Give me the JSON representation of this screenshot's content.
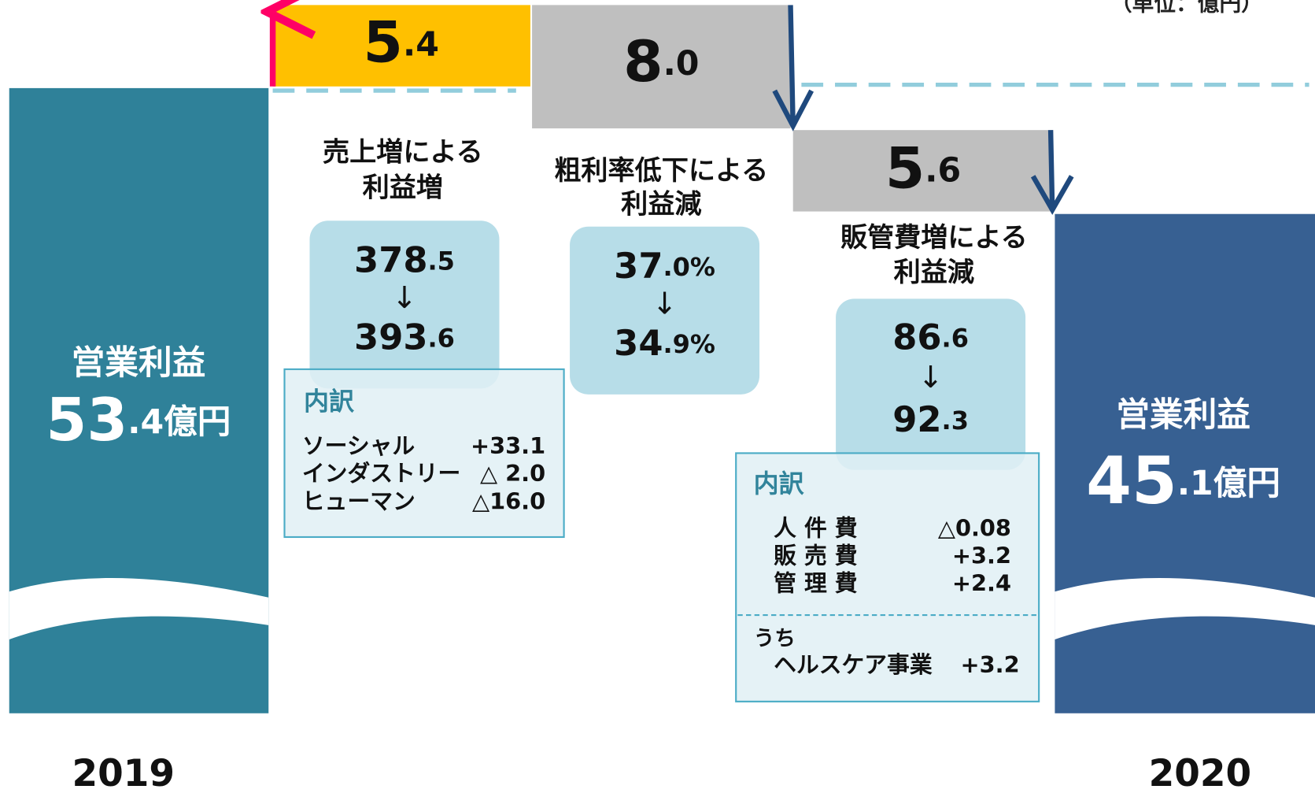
{
  "unit_note": "（単位：億円）",
  "start": {
    "label": "営業利益",
    "value_main": "53",
    "value_sub": ".4億円",
    "year": "2019"
  },
  "end": {
    "label": "営業利益",
    "value_main": "45",
    "value_sub": ".1億円",
    "year": "2020"
  },
  "steps": [
    {
      "main": "5",
      "sub": ".4",
      "caption": [
        "売上増による",
        "利益増"
      ],
      "box": [
        {
          "main": "378",
          "sub": ".5"
        },
        "↓",
        {
          "main": "393",
          "sub": ".6"
        }
      ],
      "detail": {
        "title": "内訳",
        "rows": [
          [
            "ソーシャル",
            "+33.1"
          ],
          [
            "インダストリー",
            "△  2.0"
          ],
          [
            "ヒューマン",
            "△16.0"
          ]
        ]
      }
    },
    {
      "main": "8",
      "sub": ".0",
      "caption": [
        "粗利率低下による",
        "利益減"
      ],
      "box": [
        {
          "main": "37",
          "sub": ".0%"
        },
        "↓",
        {
          "main": "34",
          "sub": ".9%"
        }
      ]
    },
    {
      "main": "5",
      "sub": ".6",
      "caption": [
        "販管費増による",
        "利益減"
      ],
      "box": [
        {
          "main": "86",
          "sub": ".6"
        },
        "↓",
        {
          "main": "92",
          "sub": ".3"
        }
      ],
      "detail": {
        "title": "内訳",
        "rows": [
          [
            "人 件 費",
            "△0.08"
          ],
          [
            "販 売 費",
            "+3.2"
          ],
          [
            "管 理 費",
            "+2.4"
          ]
        ],
        "sub_title": "うち",
        "sub_rows": [
          [
            "ヘルスケア事業",
            "+3.2"
          ]
        ]
      }
    }
  ]
}
